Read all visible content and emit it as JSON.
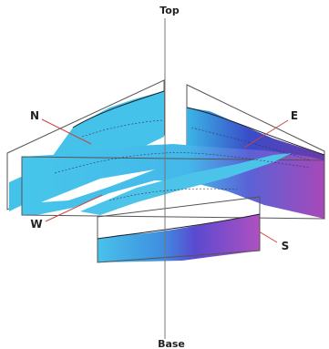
{
  "axis": {
    "top": "Top",
    "base": "Base"
  },
  "directions": {
    "north": "N",
    "east": "E",
    "west": "W",
    "south": "S"
  }
}
